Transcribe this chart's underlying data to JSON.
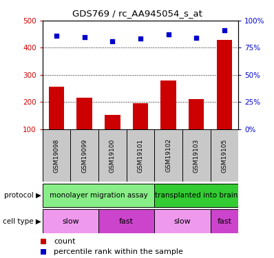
{
  "title": "GDS769 / rc_AA945054_s_at",
  "samples": [
    "GSM19098",
    "GSM19099",
    "GSM19100",
    "GSM19101",
    "GSM19102",
    "GSM19103",
    "GSM19105"
  ],
  "bar_values": [
    255,
    215,
    152,
    195,
    280,
    210,
    430
  ],
  "dot_values_left_scale": [
    443,
    438,
    425,
    435,
    450,
    437,
    465
  ],
  "bar_color": "#cc0000",
  "dot_color": "#0000cc",
  "ylim_left": [
    100,
    500
  ],
  "ylim_right": [
    0,
    100
  ],
  "yticks_left": [
    100,
    200,
    300,
    400,
    500
  ],
  "yticks_right": [
    0,
    25,
    50,
    75,
    100
  ],
  "ytick_labels_right": [
    "0%",
    "25%",
    "50%",
    "75%",
    "100%"
  ],
  "grid_values": [
    200,
    300,
    400
  ],
  "protocol_labels": [
    {
      "text": "monolayer migration assay",
      "start": 0,
      "end": 4,
      "color": "#88ee88"
    },
    {
      "text": "transplanted into brain",
      "start": 4,
      "end": 7,
      "color": "#33cc33"
    }
  ],
  "celltype_labels": [
    {
      "text": "slow",
      "start": 0,
      "end": 2,
      "color": "#ee99ee"
    },
    {
      "text": "fast",
      "start": 2,
      "end": 4,
      "color": "#cc44cc"
    },
    {
      "text": "slow",
      "start": 4,
      "end": 6,
      "color": "#ee99ee"
    },
    {
      "text": "fast",
      "start": 6,
      "end": 7,
      "color": "#cc44cc"
    }
  ],
  "legend_count": "count",
  "legend_pct": "percentile rank within the sample",
  "sample_box_color": "#c8c8c8",
  "label_protocol": "protocol",
  "label_celltype": "cell type",
  "figsize": [
    3.98,
    3.75
  ],
  "dpi": 100
}
